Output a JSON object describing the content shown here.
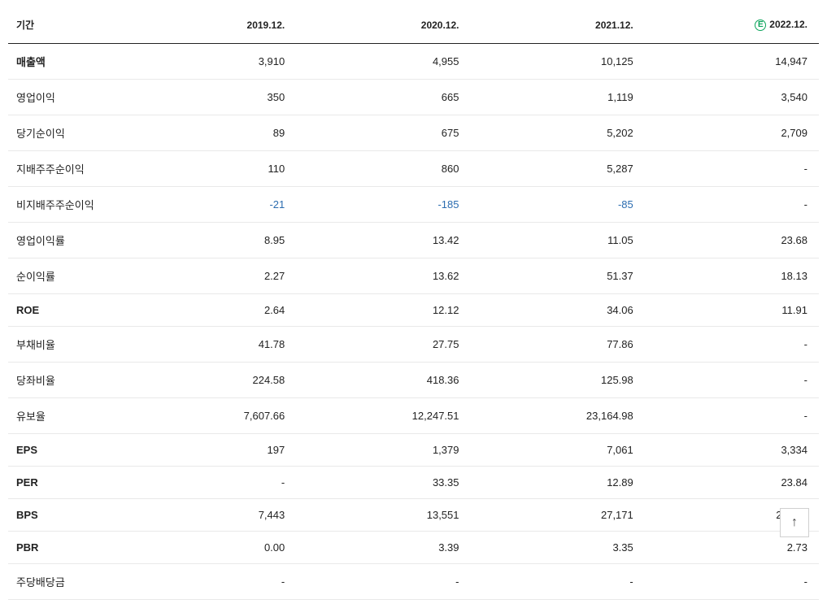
{
  "type": "table",
  "background_color": "#ffffff",
  "header_border_color": "#222222",
  "row_border_color": "#e9e9e9",
  "row_label_header": "기간",
  "columns": [
    {
      "label": "2019.12.",
      "is_estimate": false
    },
    {
      "label": "2020.12.",
      "is_estimate": false
    },
    {
      "label": "2021.12.",
      "is_estimate": false
    },
    {
      "label": "2022.12.",
      "is_estimate": true
    }
  ],
  "estimate_badge_letter": "E",
  "estimate_badge_color": "#0aa35a",
  "text_color": "#222222",
  "negative_color": "#2b6cb0",
  "header_fontsize": 12,
  "cell_fontsize": 13,
  "rows": [
    {
      "label": "매출액",
      "bold": true,
      "neg": [
        false,
        false,
        false,
        false
      ],
      "v": [
        "3,910",
        "4,955",
        "10,125",
        "14,947"
      ]
    },
    {
      "label": "영업이익",
      "bold": false,
      "neg": [
        false,
        false,
        false,
        false
      ],
      "v": [
        "350",
        "665",
        "1,119",
        "3,540"
      ]
    },
    {
      "label": "당기순이익",
      "bold": false,
      "neg": [
        false,
        false,
        false,
        false
      ],
      "v": [
        "89",
        "675",
        "5,202",
        "2,709"
      ]
    },
    {
      "label": "지배주주순이익",
      "bold": false,
      "neg": [
        false,
        false,
        false,
        false
      ],
      "v": [
        "110",
        "860",
        "5,287",
        "-"
      ]
    },
    {
      "label": "비지배주주순이익",
      "bold": false,
      "neg": [
        true,
        true,
        true,
        false
      ],
      "v": [
        "-21",
        "-185",
        "-85",
        "-"
      ]
    },
    {
      "label": "영업이익률",
      "bold": false,
      "neg": [
        false,
        false,
        false,
        false
      ],
      "v": [
        "8.95",
        "13.42",
        "11.05",
        "23.68"
      ]
    },
    {
      "label": "순이익률",
      "bold": false,
      "neg": [
        false,
        false,
        false,
        false
      ],
      "v": [
        "2.27",
        "13.62",
        "51.37",
        "18.13"
      ]
    },
    {
      "label": "ROE",
      "bold": true,
      "neg": [
        false,
        false,
        false,
        false
      ],
      "v": [
        "2.64",
        "12.12",
        "34.06",
        "11.91"
      ]
    },
    {
      "label": "부채비율",
      "bold": false,
      "neg": [
        false,
        false,
        false,
        false
      ],
      "v": [
        "41.78",
        "27.75",
        "77.86",
        "-"
      ]
    },
    {
      "label": "당좌비율",
      "bold": false,
      "neg": [
        false,
        false,
        false,
        false
      ],
      "v": [
        "224.58",
        "418.36",
        "125.98",
        "-"
      ]
    },
    {
      "label": "유보율",
      "bold": false,
      "neg": [
        false,
        false,
        false,
        false
      ],
      "v": [
        "7,607.66",
        "12,247.51",
        "23,164.98",
        "-"
      ]
    },
    {
      "label": "EPS",
      "bold": true,
      "neg": [
        false,
        false,
        false,
        false
      ],
      "v": [
        "197",
        "1,379",
        "7,061",
        "3,334"
      ]
    },
    {
      "label": "PER",
      "bold": true,
      "neg": [
        false,
        false,
        false,
        false
      ],
      "v": [
        "-",
        "33.35",
        "12.89",
        "23.84"
      ]
    },
    {
      "label": "BPS",
      "bold": true,
      "neg": [
        false,
        false,
        false,
        false
      ],
      "v": [
        "7,443",
        "13,551",
        "27,171",
        "29,112"
      ]
    },
    {
      "label": "PBR",
      "bold": true,
      "neg": [
        false,
        false,
        false,
        false
      ],
      "v": [
        "0.00",
        "3.39",
        "3.35",
        "2.73"
      ]
    },
    {
      "label": "주당배당금",
      "bold": false,
      "neg": [
        false,
        false,
        false,
        false
      ],
      "v": [
        "-",
        "-",
        "-",
        "-"
      ]
    }
  ],
  "scroll_top_label": "↑"
}
